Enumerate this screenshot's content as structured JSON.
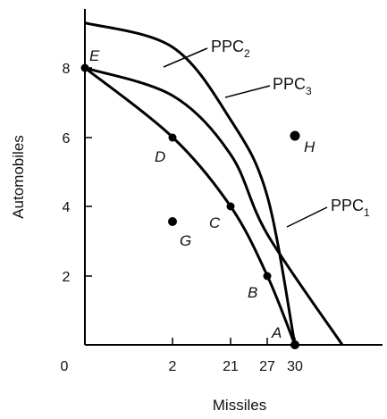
{
  "chart_data": {
    "type": "line",
    "title": "",
    "xlabel": "Missiles",
    "ylabel": "Automobiles",
    "x_tick_labels": [
      "0",
      "2",
      "21",
      "27",
      "30"
    ],
    "y_tick_labels": [
      "2",
      "4",
      "6",
      "8"
    ],
    "ylim": [
      0,
      9.3
    ],
    "series": [
      {
        "name": "PPC",
        "subscript": "1",
        "color": "#000000",
        "points": [
          [
            0,
            8.0
          ],
          [
            2,
            6.0
          ],
          [
            21,
            4.0
          ],
          [
            27,
            2.0
          ],
          [
            30,
            0
          ]
        ]
      },
      {
        "name": "PPC",
        "subscript": "2",
        "color": "#000000",
        "points": [
          [
            0,
            9.3
          ],
          [
            2,
            8.6
          ],
          [
            21,
            6.5
          ],
          [
            27,
            4.3
          ],
          [
            30,
            0
          ]
        ]
      },
      {
        "name": "PPC",
        "subscript": "3",
        "color": "#000000",
        "points": [
          [
            0,
            8.0
          ],
          [
            2,
            7.2
          ],
          [
            21,
            5.5
          ],
          [
            27,
            3.2
          ],
          [
            32,
            0
          ]
        ]
      }
    ],
    "points": [
      {
        "label": "A",
        "x": 30,
        "y": 0
      },
      {
        "label": "B",
        "x": 27,
        "y": 2.0
      },
      {
        "label": "C",
        "x": 21,
        "y": 4.0
      },
      {
        "label": "D",
        "x": 2,
        "y": 6.0
      },
      {
        "label": "E",
        "x": 0,
        "y": 8.0
      },
      {
        "label": "G",
        "x": 2,
        "y": 3.5
      },
      {
        "label": "H",
        "x": 30,
        "y": 6.1
      }
    ],
    "dot_points": [
      "B",
      "C",
      "D",
      "E",
      "G",
      "H",
      "A"
    ],
    "grid": false,
    "legend": "curve labels with leader lines"
  }
}
